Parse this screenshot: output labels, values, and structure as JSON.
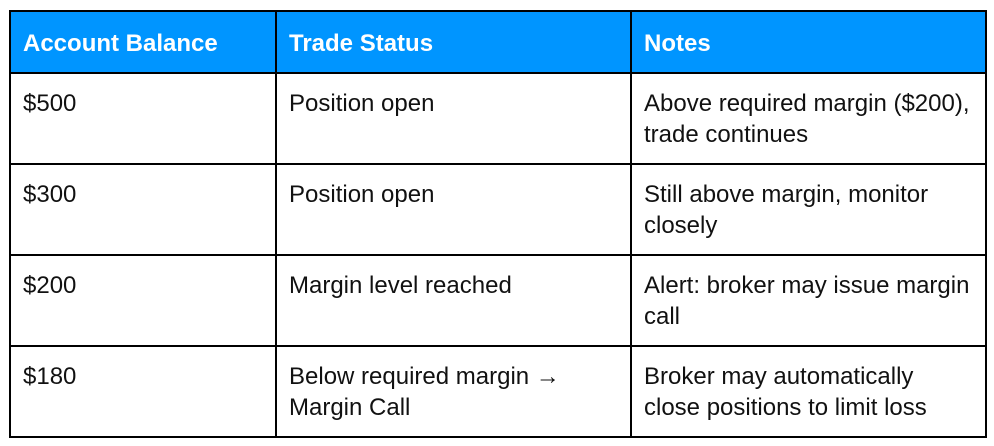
{
  "table": {
    "header_color": "#0095ff",
    "headers": [
      "Account Balance",
      "Trade Status",
      "Notes"
    ],
    "rows": [
      [
        "$500",
        "Position open",
        "Above required margin ($200), trade continues"
      ],
      [
        "$300",
        "Position open",
        "Still above margin, monitor closely"
      ],
      [
        "$200",
        "Margin level reached",
        "Alert: broker may issue margin call"
      ],
      [
        "$180",
        "Below required margin → Margin Call",
        "Broker may automatically close positions to limit loss"
      ]
    ]
  }
}
